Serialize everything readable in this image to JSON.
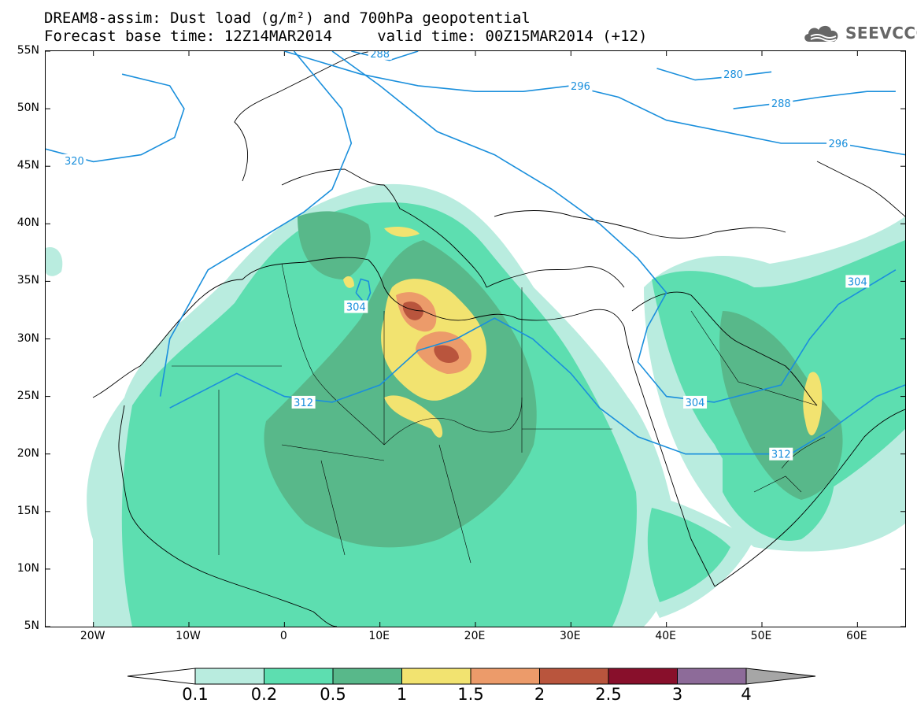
{
  "title_line1": "DREAM8-assim: Dust load (g/m²) and 700hPa geopotential",
  "title_line2": "Forecast base time: 12Z14MAR2014     valid time: 00Z15MAR2014 (+12)",
  "logo": {
    "icon": "cloud-icon",
    "text": "SEEVCCC"
  },
  "map": {
    "lon_range": [
      -25,
      65
    ],
    "lat_range": [
      5,
      55
    ],
    "lat_ticks": [
      {
        "value": 55,
        "label": "55N"
      },
      {
        "value": 50,
        "label": "50N"
      },
      {
        "value": 45,
        "label": "45N"
      },
      {
        "value": 40,
        "label": "40N"
      },
      {
        "value": 35,
        "label": "35N"
      },
      {
        "value": 30,
        "label": "30N"
      },
      {
        "value": 25,
        "label": "25N"
      },
      {
        "value": 20,
        "label": "20N"
      },
      {
        "value": 15,
        "label": "15N"
      },
      {
        "value": 10,
        "label": "10N"
      },
      {
        "value": 5,
        "label": "5N"
      }
    ],
    "lon_ticks": [
      {
        "value": -20,
        "label": "20W"
      },
      {
        "value": -10,
        "label": "10W"
      },
      {
        "value": 0,
        "label": "0"
      },
      {
        "value": 10,
        "label": "10E"
      },
      {
        "value": 20,
        "label": "20E"
      },
      {
        "value": 30,
        "label": "30E"
      },
      {
        "value": 40,
        "label": "40E"
      },
      {
        "value": 50,
        "label": "50E"
      },
      {
        "value": 60,
        "label": "60E"
      }
    ],
    "contour_color": "#1a8fdc",
    "contours": [
      {
        "label": "320",
        "points": [
          [
            -25,
            46.5
          ],
          [
            -20,
            45.4
          ],
          [
            -15,
            46
          ],
          [
            -11.5,
            47.5
          ],
          [
            -10.5,
            50
          ],
          [
            -12,
            52
          ],
          [
            -17,
            53
          ]
        ],
        "labels": [
          [
            -22,
            45.5
          ]
        ]
      },
      {
        "label": "312",
        "points": [
          [
            -12,
            24
          ],
          [
            -5,
            27
          ],
          [
            0,
            25
          ],
          [
            5,
            24.5
          ],
          [
            10,
            26
          ],
          [
            14,
            29
          ],
          [
            18,
            30
          ],
          [
            22,
            31.8
          ],
          [
            26,
            30
          ],
          [
            30,
            27
          ],
          [
            33,
            24
          ],
          [
            37,
            21.5
          ],
          [
            42,
            20
          ],
          [
            48,
            20
          ],
          [
            53,
            20
          ],
          [
            57,
            22
          ],
          [
            62,
            25
          ],
          [
            65,
            26
          ]
        ],
        "labels": [
          [
            2,
            24.5
          ],
          [
            52,
            20
          ]
        ]
      },
      {
        "label": "312",
        "points": [
          [
            -13,
            25
          ],
          [
            -12,
            30
          ],
          [
            -8,
            36
          ],
          [
            -2,
            39
          ],
          [
            2,
            41
          ],
          [
            5,
            43
          ],
          [
            7,
            47
          ],
          [
            6,
            50
          ],
          [
            3,
            53
          ],
          [
            1,
            55
          ]
        ],
        "labels": []
      },
      {
        "label": "304",
        "points": [
          [
            7.5,
            34
          ],
          [
            8.5,
            33
          ],
          [
            9,
            34
          ],
          [
            8.8,
            35
          ],
          [
            8,
            35.2
          ],
          [
            7.5,
            34
          ]
        ],
        "labels": [
          [
            7.5,
            32.8
          ]
        ]
      },
      {
        "label": "304",
        "points": [
          [
            5,
            55
          ],
          [
            10,
            52
          ],
          [
            16,
            48
          ],
          [
            22,
            46
          ],
          [
            28,
            43
          ],
          [
            33,
            40
          ],
          [
            37,
            37
          ],
          [
            40,
            34
          ],
          [
            38,
            31
          ],
          [
            37,
            28
          ],
          [
            40,
            25
          ],
          [
            45,
            24.5
          ],
          [
            52,
            26
          ],
          [
            55,
            30
          ],
          [
            58,
            33
          ],
          [
            61,
            34.5
          ],
          [
            64,
            36
          ]
        ],
        "labels": [
          [
            43,
            24.5
          ],
          [
            60,
            35
          ]
        ]
      },
      {
        "label": "296",
        "points": [
          [
            0,
            55
          ],
          [
            8,
            53
          ],
          [
            14,
            52
          ],
          [
            20,
            51.5
          ],
          [
            25,
            51.5
          ],
          [
            30,
            52
          ],
          [
            35,
            51
          ],
          [
            40,
            49
          ],
          [
            46,
            48
          ],
          [
            52,
            47
          ],
          [
            58,
            47
          ],
          [
            65,
            46
          ]
        ],
        "labels": [
          [
            31,
            52
          ],
          [
            58,
            47
          ]
        ]
      },
      {
        "label": "288",
        "points": [
          [
            7,
            55
          ],
          [
            11,
            54.2
          ],
          [
            14,
            55
          ]
        ],
        "labels": [
          [
            10,
            54.8
          ]
        ]
      },
      {
        "label": "288",
        "points": [
          [
            47,
            50
          ],
          [
            52,
            50.5
          ],
          [
            56,
            51
          ],
          [
            61,
            51.5
          ],
          [
            64,
            51.5
          ]
        ],
        "labels": [
          [
            52,
            50.5
          ]
        ]
      },
      {
        "label": "280",
        "points": [
          [
            39,
            53.5
          ],
          [
            43,
            52.5
          ],
          [
            47,
            52.8
          ],
          [
            51,
            53.2
          ]
        ],
        "labels": [
          [
            47,
            53
          ]
        ]
      }
    ]
  },
  "colorbar": {
    "colors": [
      "#ffffff",
      "#b9ecdf",
      "#5ddeb0",
      "#58b88a",
      "#f2e370",
      "#ec9b6a",
      "#b9553d",
      "#880f2b",
      "#8d6b99",
      "#a6a6a6"
    ],
    "labels": [
      "0.1",
      "0.2",
      "0.5",
      "1",
      "1.5",
      "2",
      "2.5",
      "3",
      "4"
    ]
  },
  "dust": {
    "levels_colors": {
      "l1": "#b9ecdf",
      "l2": "#5ddeb0",
      "l3": "#58b88a",
      "l4": "#f2e370",
      "l5": "#ec9b6a",
      "l6": "#b9553d"
    }
  }
}
